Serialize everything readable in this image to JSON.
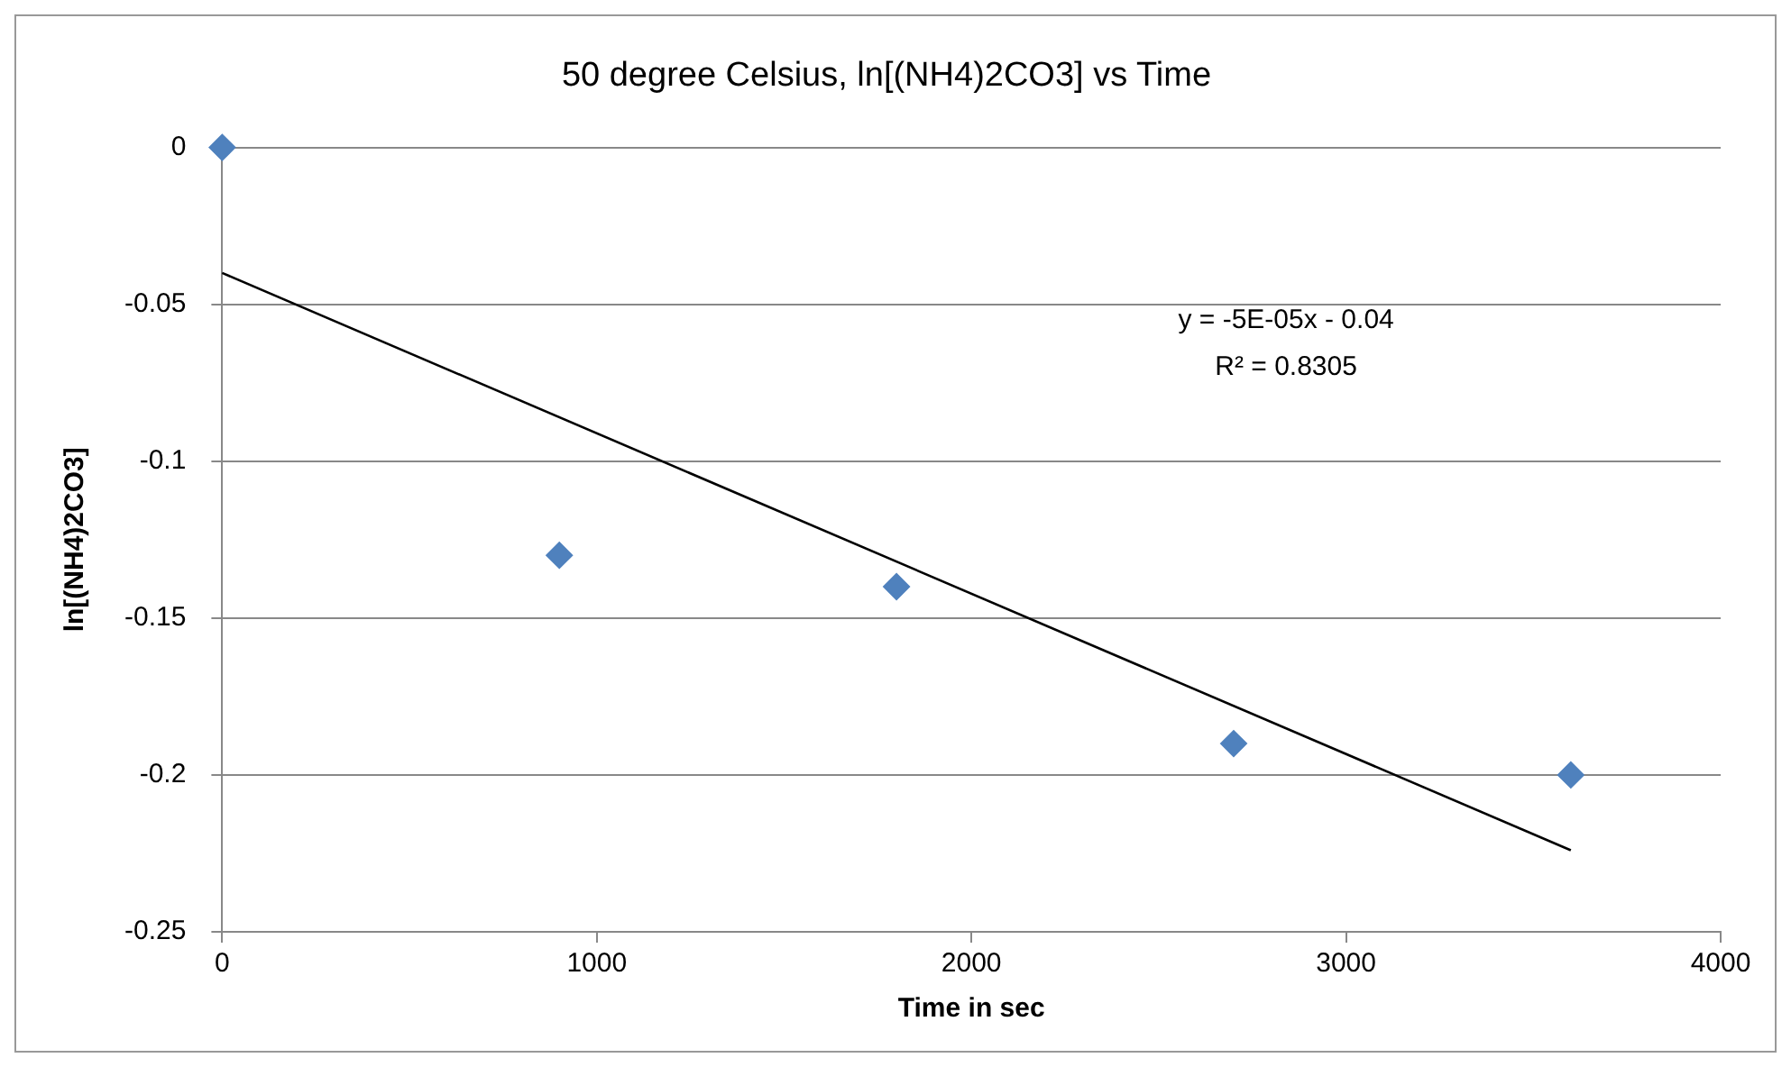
{
  "chart_data": {
    "type": "scatter",
    "title": "50 degree Celsius, ln[(NH4)2CO3] vs Time",
    "xlabel": "Time in sec",
    "ylabel": "ln[(NH4)2CO3]",
    "series": [
      {
        "type": "scatter",
        "color": "#4f81bd",
        "marker": "diamond",
        "x": [
          0,
          900,
          1800,
          2700,
          3600
        ],
        "values": [
          0,
          -0.13,
          -0.14,
          -0.19,
          -0.2
        ]
      },
      {
        "type": "line",
        "color": "#000000",
        "marker": "none",
        "x": [
          0,
          3600
        ],
        "values": [
          -0.04,
          -0.224
        ]
      }
    ],
    "xlim": [
      0,
      4000
    ],
    "xticks": [
      0,
      1000,
      2000,
      3000,
      4000
    ],
    "ylim": [
      -0.25,
      0
    ],
    "yticks": [
      0,
      -0.05,
      -0.1,
      -0.15,
      -0.2,
      -0.25
    ],
    "grid": "y",
    "legend": false,
    "annotations": [
      "y = -5E-05x - 0.04",
      "R² = 0.8305"
    ]
  }
}
